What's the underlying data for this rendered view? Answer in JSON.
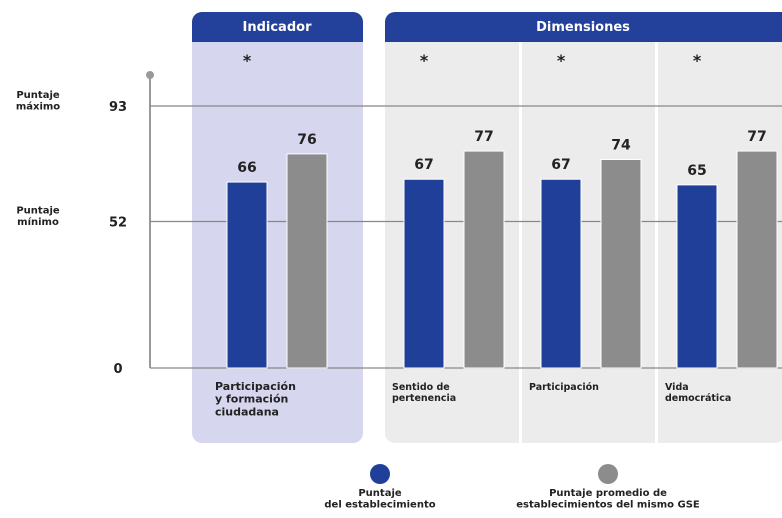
{
  "chart_data": {
    "type": "bar",
    "headers": [
      "Indicador",
      "Dimensiones"
    ],
    "categories": [
      "Participación\ny formación\nciudadana",
      "Sentido de\npertenencia",
      "Participación",
      "Vida\ndemocrática"
    ],
    "annotations": [
      "*",
      "*",
      "*",
      "*"
    ],
    "series": [
      {
        "name": "Puntaje\ndel establecimiento",
        "color": "#1f3f99",
        "values": [
          66,
          67,
          67,
          65
        ]
      },
      {
        "name": "Puntaje promedio de\nestablecimientos del mismo GSE",
        "color": "#8c8c8c",
        "values": [
          76,
          77,
          74,
          77
        ]
      }
    ],
    "ylim": [
      0,
      104
    ],
    "yticks": [
      0,
      52,
      93
    ],
    "ytick_names": {
      "52": "Puntaje\nmínimo",
      "93": "Puntaje\nmáximo"
    },
    "grid": true
  }
}
